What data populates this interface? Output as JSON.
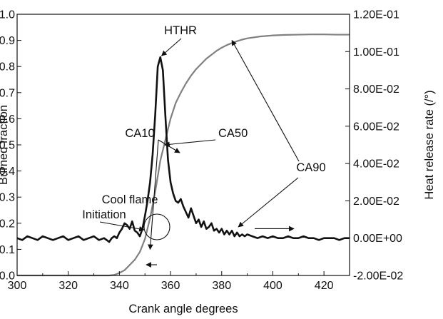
{
  "chart_data": {
    "type": "line",
    "xlabel": "Crank angle degrees",
    "ylabel_left": "Burned fraction",
    "ylabel_right": "Heat release rate (/°)",
    "xlim": [
      300,
      430
    ],
    "ylim_left": [
      0,
      1.0
    ],
    "ylim_right": [
      -0.02,
      0.12
    ],
    "x_ticks": [
      300,
      320,
      340,
      360,
      380,
      400,
      420
    ],
    "x_tick_labels": [
      "300",
      "320",
      "340",
      "360",
      "380",
      "400",
      "420"
    ],
    "y_left_ticks": [
      0,
      0.1,
      0.2,
      0.3,
      0.4,
      0.5,
      0.6,
      0.7,
      0.8,
      0.9,
      1.0
    ],
    "y_left_tick_labels": [
      "0.0",
      "0.1",
      "0.2",
      "0.3",
      "0.4",
      "0.5",
      "0.6",
      "0.7",
      "0.8",
      "0.9",
      "1.0"
    ],
    "y_right_ticks": [
      -0.02,
      0,
      0.02,
      0.04,
      0.06,
      0.08,
      0.1,
      0.12
    ],
    "y_right_tick_labels": [
      "-2.00E-02",
      "0.00E+00",
      "2.00E-02",
      "4.00E-02",
      "6.00E-02",
      "8.00E-02",
      "1.00E-01",
      "1.20E-01"
    ],
    "grid": false,
    "colors": {
      "burned_fraction": "#808080",
      "heat_release_rate": "#111111",
      "annotation": "#111111"
    },
    "series": [
      {
        "axis": "left",
        "x": [
          300,
          320,
          336,
          338,
          340,
          342,
          344,
          346,
          348,
          350,
          352,
          354,
          356,
          358,
          360,
          362,
          364,
          366,
          368,
          370,
          372,
          374,
          376,
          378,
          380,
          382,
          384,
          386,
          388,
          390,
          395,
          400,
          405,
          410,
          415,
          420,
          425,
          430
        ],
        "y": [
          0.0,
          0.0,
          0.0,
          0.002,
          0.01,
          0.02,
          0.04,
          0.06,
          0.09,
          0.14,
          0.22,
          0.32,
          0.44,
          0.52,
          0.6,
          0.66,
          0.7,
          0.735,
          0.765,
          0.79,
          0.81,
          0.83,
          0.845,
          0.86,
          0.872,
          0.882,
          0.89,
          0.897,
          0.903,
          0.908,
          0.915,
          0.919,
          0.921,
          0.922,
          0.923,
          0.923,
          0.922,
          0.922
        ]
      },
      {
        "axis": "right",
        "x": [
          300,
          302,
          304,
          306,
          308,
          310,
          312,
          314,
          316,
          318,
          320,
          322,
          324,
          326,
          328,
          330,
          332,
          334,
          336,
          337,
          338,
          339,
          340,
          341,
          342,
          343,
          344,
          345,
          346,
          347,
          348,
          349,
          350,
          351,
          352,
          353,
          354,
          355,
          356,
          357,
          358,
          359,
          360,
          361,
          362,
          363,
          364,
          365,
          366,
          367,
          368,
          369,
          370,
          371,
          372,
          373,
          374,
          375,
          376,
          377,
          378,
          379,
          380,
          381,
          382,
          383,
          384,
          385,
          386,
          387,
          388,
          389,
          390,
          392,
          394,
          396,
          398,
          400,
          402,
          404,
          406,
          408,
          410,
          412,
          414,
          416,
          418,
          420,
          422,
          424,
          426,
          428,
          430
        ],
        "y": [
          0.0,
          -0.001,
          0.001,
          0.0,
          -0.001,
          0.001,
          0.0,
          -0.001,
          0.0,
          0.001,
          -0.001,
          0.0,
          0.001,
          -0.001,
          0.0,
          0.001,
          -0.001,
          0.0,
          -0.002,
          0.0,
          0.001,
          0.0,
          0.003,
          0.005,
          0.008,
          0.007,
          0.005,
          0.009,
          0.004,
          0.003,
          0.001,
          0.005,
          0.012,
          0.02,
          0.03,
          0.045,
          0.066,
          0.092,
          0.097,
          0.09,
          0.065,
          0.042,
          0.03,
          0.024,
          0.02,
          0.019,
          0.021,
          0.017,
          0.014,
          0.011,
          0.016,
          0.012,
          0.008,
          0.01,
          0.006,
          0.009,
          0.005,
          0.006,
          0.008,
          0.004,
          0.005,
          0.003,
          0.005,
          0.002,
          0.004,
          0.002,
          0.004,
          0.001,
          0.003,
          0.001,
          0.002,
          0.001,
          0.002,
          0.001,
          0.0,
          0.001,
          0.0,
          0.001,
          0.0,
          0.0,
          0.001,
          0.0,
          0.0,
          0.001,
          0.0,
          0.0,
          -0.001,
          0.0,
          0.0,
          0.0,
          -0.001,
          0.0,
          0.0
        ]
      }
    ],
    "annotations": [
      "HTHR",
      "CA10",
      "CA50",
      "CA90",
      "Cool flame",
      "Initiation"
    ]
  }
}
